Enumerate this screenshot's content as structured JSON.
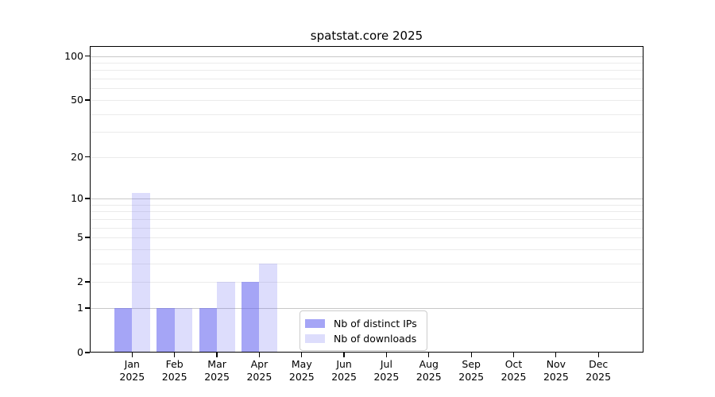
{
  "chart_data": {
    "type": "bar",
    "title": "spatstat.core 2025",
    "categories": [
      "Jan",
      "Feb",
      "Mar",
      "Apr",
      "May",
      "Jun",
      "Jul",
      "Aug",
      "Sep",
      "Oct",
      "Nov",
      "Dec"
    ],
    "year_label": "2025",
    "series": [
      {
        "name": "Nb of distinct IPs",
        "color": "rgba(100,100,240,0.58)",
        "values": [
          1,
          1,
          1,
          2,
          0,
          0,
          0,
          0,
          0,
          0,
          0,
          0
        ]
      },
      {
        "name": "Nb of downloads",
        "color": "rgba(100,100,240,0.22)",
        "values": [
          11,
          1,
          2,
          3,
          0,
          0,
          0,
          0,
          0,
          0,
          0,
          0
        ]
      }
    ],
    "xlabel": "",
    "ylabel": "",
    "yscale": "log1p",
    "ylim": [
      0,
      117
    ],
    "yticks": [
      0,
      1,
      2,
      5,
      10,
      20,
      50,
      100
    ],
    "major_gridlines": [
      1,
      10,
      100
    ],
    "minor_gridlines": [
      2,
      3,
      4,
      5,
      6,
      7,
      8,
      9,
      20,
      30,
      40,
      50,
      60,
      70,
      80,
      90
    ],
    "grid": true,
    "legend_position": "lower center"
  },
  "colors": {
    "grid_major": "#c8c8c8",
    "grid_minor": "#ebebeb",
    "axis": "#000000",
    "background": "#ffffff",
    "legend_border": "#cccccc"
  }
}
